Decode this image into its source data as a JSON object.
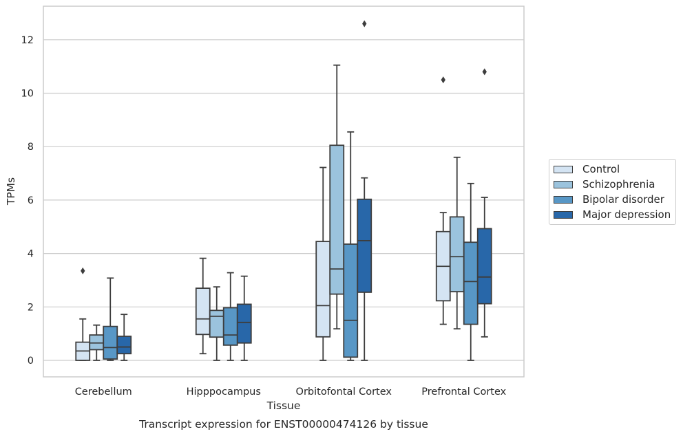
{
  "chart_data": {
    "type": "box",
    "title": "Transcript expression for ENST00000474126 by tissue",
    "xlabel": "Tissue",
    "ylabel": "TPMs",
    "ylim": [
      -0.6,
      13.2
    ],
    "yticks": [
      0,
      2,
      4,
      6,
      8,
      10,
      12
    ],
    "grid": true,
    "legend_position": "right",
    "categories": [
      "Cerebellum",
      "Hipppocampus",
      "Orbitofontal Cortex",
      "Prefrontal Cortex"
    ],
    "series": [
      {
        "name": "Control",
        "color": "#d4e4f3",
        "boxes": [
          {
            "whislo": 0.0,
            "q1": 0.0,
            "med": 0.35,
            "q3": 0.68,
            "whishi": 1.55,
            "fliers": [
              3.35
            ]
          },
          {
            "whislo": 0.25,
            "q1": 0.97,
            "med": 1.55,
            "q3": 2.7,
            "whishi": 3.82,
            "fliers": []
          },
          {
            "whislo": 0.0,
            "q1": 0.88,
            "med": 2.05,
            "q3": 4.45,
            "whishi": 7.22,
            "fliers": []
          },
          {
            "whislo": 1.35,
            "q1": 2.23,
            "med": 3.52,
            "q3": 4.82,
            "whishi": 5.53,
            "fliers": [
              10.5
            ]
          }
        ]
      },
      {
        "name": "Schizophrenia",
        "color": "#9bc3dd",
        "boxes": [
          {
            "whislo": 0.0,
            "q1": 0.4,
            "med": 0.65,
            "q3": 0.95,
            "whishi": 1.32,
            "fliers": []
          },
          {
            "whislo": 0.0,
            "q1": 0.87,
            "med": 1.65,
            "q3": 1.87,
            "whishi": 2.75,
            "fliers": []
          },
          {
            "whislo": 1.18,
            "q1": 2.48,
            "med": 3.42,
            "q3": 8.05,
            "whishi": 11.05,
            "fliers": []
          },
          {
            "whislo": 1.18,
            "q1": 2.57,
            "med": 3.88,
            "q3": 5.37,
            "whishi": 7.6,
            "fliers": []
          }
        ]
      },
      {
        "name": "Bipolar disorder",
        "color": "#5897c6",
        "boxes": [
          {
            "whislo": 0.0,
            "q1": 0.05,
            "med": 0.48,
            "q3": 1.27,
            "whishi": 3.08,
            "fliers": []
          },
          {
            "whislo": 0.0,
            "q1": 0.57,
            "med": 0.95,
            "q3": 1.97,
            "whishi": 3.28,
            "fliers": []
          },
          {
            "whislo": 0.0,
            "q1": 0.12,
            "med": 1.5,
            "q3": 4.35,
            "whishi": 8.55,
            "fliers": []
          },
          {
            "whislo": 0.0,
            "q1": 1.35,
            "med": 2.95,
            "q3": 4.42,
            "whishi": 6.62,
            "fliers": []
          }
        ]
      },
      {
        "name": "Major depression",
        "color": "#2867a9",
        "boxes": [
          {
            "whislo": 0.0,
            "q1": 0.25,
            "med": 0.5,
            "q3": 0.9,
            "whishi": 1.72,
            "fliers": []
          },
          {
            "whislo": 0.0,
            "q1": 0.65,
            "med": 1.42,
            "q3": 2.1,
            "whishi": 3.15,
            "fliers": []
          },
          {
            "whislo": 0.0,
            "q1": 2.55,
            "med": 4.48,
            "q3": 6.03,
            "whishi": 6.83,
            "fliers": [
              12.6
            ]
          },
          {
            "whislo": 0.88,
            "q1": 2.12,
            "med": 3.12,
            "q3": 4.93,
            "whishi": 6.1,
            "fliers": [
              10.8
            ]
          }
        ]
      }
    ]
  }
}
